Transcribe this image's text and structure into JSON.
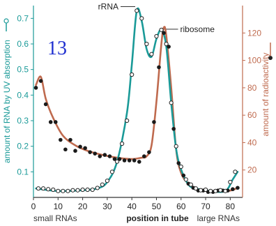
{
  "figure_number": "13",
  "colors": {
    "uv": "#1a9a98",
    "radio": "#bf6a4e",
    "axis": "#333333",
    "number": "#1f2fd0"
  },
  "chart_data": {
    "type": "line",
    "title": "",
    "xlabel": "position in tube",
    "x_note_left": "small RNAs",
    "x_note_right": "large RNAs",
    "xlim": [
      0,
      85
    ],
    "xticks": [
      "0",
      "10",
      "20",
      "30",
      "40",
      "50",
      "60",
      "70",
      "80"
    ],
    "y_left": {
      "label": "amount of RNA by UV absorption",
      "lim": [
        0,
        0.75
      ],
      "ticks": [
        "0.1",
        "0.2",
        "0.3",
        "0.4",
        "0.5",
        "0.6",
        "0.7"
      ]
    },
    "y_right": {
      "label": "amount of radioactivity",
      "lim": [
        0,
        140
      ],
      "ticks": [
        "20",
        "40",
        "60",
        "80",
        "100",
        "120"
      ]
    },
    "annotations": [
      {
        "text": "rRNA",
        "x": 42.5,
        "y": 0.735
      },
      {
        "text": "ribosome",
        "x": 52,
        "y": 0.655
      }
    ],
    "series": [
      {
        "name": "amount of RNA by UV absorption",
        "axis": "left",
        "marker": "open-circle",
        "points": [
          [
            2,
            0.035
          ],
          [
            4,
            0.035
          ],
          [
            6,
            0.032
          ],
          [
            8,
            0.03
          ],
          [
            10,
            0.025
          ],
          [
            12,
            0.025
          ],
          [
            14,
            0.025
          ],
          [
            16,
            0.028
          ],
          [
            18,
            0.028
          ],
          [
            20,
            0.03
          ],
          [
            22,
            0.03
          ],
          [
            24,
            0.03
          ],
          [
            26,
            0.037
          ],
          [
            28,
            0.05
          ],
          [
            30,
            0.065
          ],
          [
            32,
            0.1
          ],
          [
            34,
            0.14
          ],
          [
            36,
            0.21
          ],
          [
            38,
            0.3
          ],
          [
            40,
            0.48
          ],
          [
            42,
            0.73
          ],
          [
            44,
            0.7
          ],
          [
            46,
            0.6
          ],
          [
            48,
            0.56
          ],
          [
            50,
            0.63
          ],
          [
            52,
            0.655
          ],
          [
            54,
            0.6
          ],
          [
            56,
            0.37
          ],
          [
            58,
            0.2
          ],
          [
            60,
            0.12
          ],
          [
            62,
            0.07
          ],
          [
            64,
            0.05
          ],
          [
            66,
            0.035
          ],
          [
            68,
            0.028
          ],
          [
            70,
            0.03
          ],
          [
            72,
            0.025
          ],
          [
            74,
            0.025
          ],
          [
            76,
            0.028
          ],
          [
            78,
            0.025
          ],
          [
            80,
            0.06
          ],
          [
            82,
            0.1
          ]
        ],
        "curve": [
          [
            1,
            0.035
          ],
          [
            10,
            0.025
          ],
          [
            20,
            0.028
          ],
          [
            26,
            0.035
          ],
          [
            30,
            0.06
          ],
          [
            34,
            0.14
          ],
          [
            38,
            0.33
          ],
          [
            40,
            0.52
          ],
          [
            42,
            0.73
          ],
          [
            44,
            0.69
          ],
          [
            46,
            0.58
          ],
          [
            48,
            0.55
          ],
          [
            50,
            0.62
          ],
          [
            52,
            0.655
          ],
          [
            54,
            0.59
          ],
          [
            56,
            0.37
          ],
          [
            58,
            0.19
          ],
          [
            60,
            0.11
          ],
          [
            63,
            0.05
          ],
          [
            66,
            0.035
          ],
          [
            72,
            0.025
          ],
          [
            78,
            0.025
          ],
          [
            81,
            0.07
          ],
          [
            83,
            0.1
          ]
        ]
      },
      {
        "name": "amount of radioactivity",
        "axis": "right",
        "marker": "filled-circle",
        "points": [
          [
            1,
            80
          ],
          [
            3,
            85
          ],
          [
            5,
            68
          ],
          [
            7,
            55
          ],
          [
            9,
            55
          ],
          [
            11,
            42
          ],
          [
            13,
            35
          ],
          [
            15,
            42
          ],
          [
            17,
            34
          ],
          [
            19,
            37
          ],
          [
            21,
            36
          ],
          [
            23,
            33
          ],
          [
            25,
            32
          ],
          [
            27,
            30
          ],
          [
            29,
            31
          ],
          [
            31,
            30
          ],
          [
            33,
            28
          ],
          [
            35,
            28
          ],
          [
            37,
            27
          ],
          [
            39,
            27
          ],
          [
            41,
            27
          ],
          [
            43,
            26
          ],
          [
            45,
            30
          ],
          [
            47,
            33
          ],
          [
            49,
            55
          ],
          [
            51,
            95
          ],
          [
            53,
            120
          ],
          [
            55,
            110
          ],
          [
            57,
            50
          ],
          [
            59,
            25
          ],
          [
            61,
            16
          ],
          [
            63,
            10
          ],
          [
            65,
            7
          ],
          [
            67,
            5
          ],
          [
            69,
            5
          ],
          [
            71,
            4
          ],
          [
            73,
            4
          ],
          [
            75,
            5
          ],
          [
            77,
            5
          ],
          [
            79,
            5
          ],
          [
            81,
            6
          ],
          [
            83,
            7
          ]
        ],
        "curve": [
          [
            1,
            82
          ],
          [
            3,
            88
          ],
          [
            5,
            72
          ],
          [
            8,
            58
          ],
          [
            12,
            45
          ],
          [
            17,
            38
          ],
          [
            22,
            34
          ],
          [
            28,
            31
          ],
          [
            34,
            29
          ],
          [
            40,
            28
          ],
          [
            44,
            29
          ],
          [
            46,
            30
          ],
          [
            48,
            38
          ],
          [
            50,
            70
          ],
          [
            52,
            112
          ],
          [
            53,
            124
          ],
          [
            54,
            118
          ],
          [
            56,
            80
          ],
          [
            58,
            35
          ],
          [
            60,
            18
          ],
          [
            63,
            10
          ],
          [
            67,
            6
          ],
          [
            74,
            4
          ],
          [
            80,
            5
          ],
          [
            83,
            7
          ]
        ]
      }
    ]
  }
}
